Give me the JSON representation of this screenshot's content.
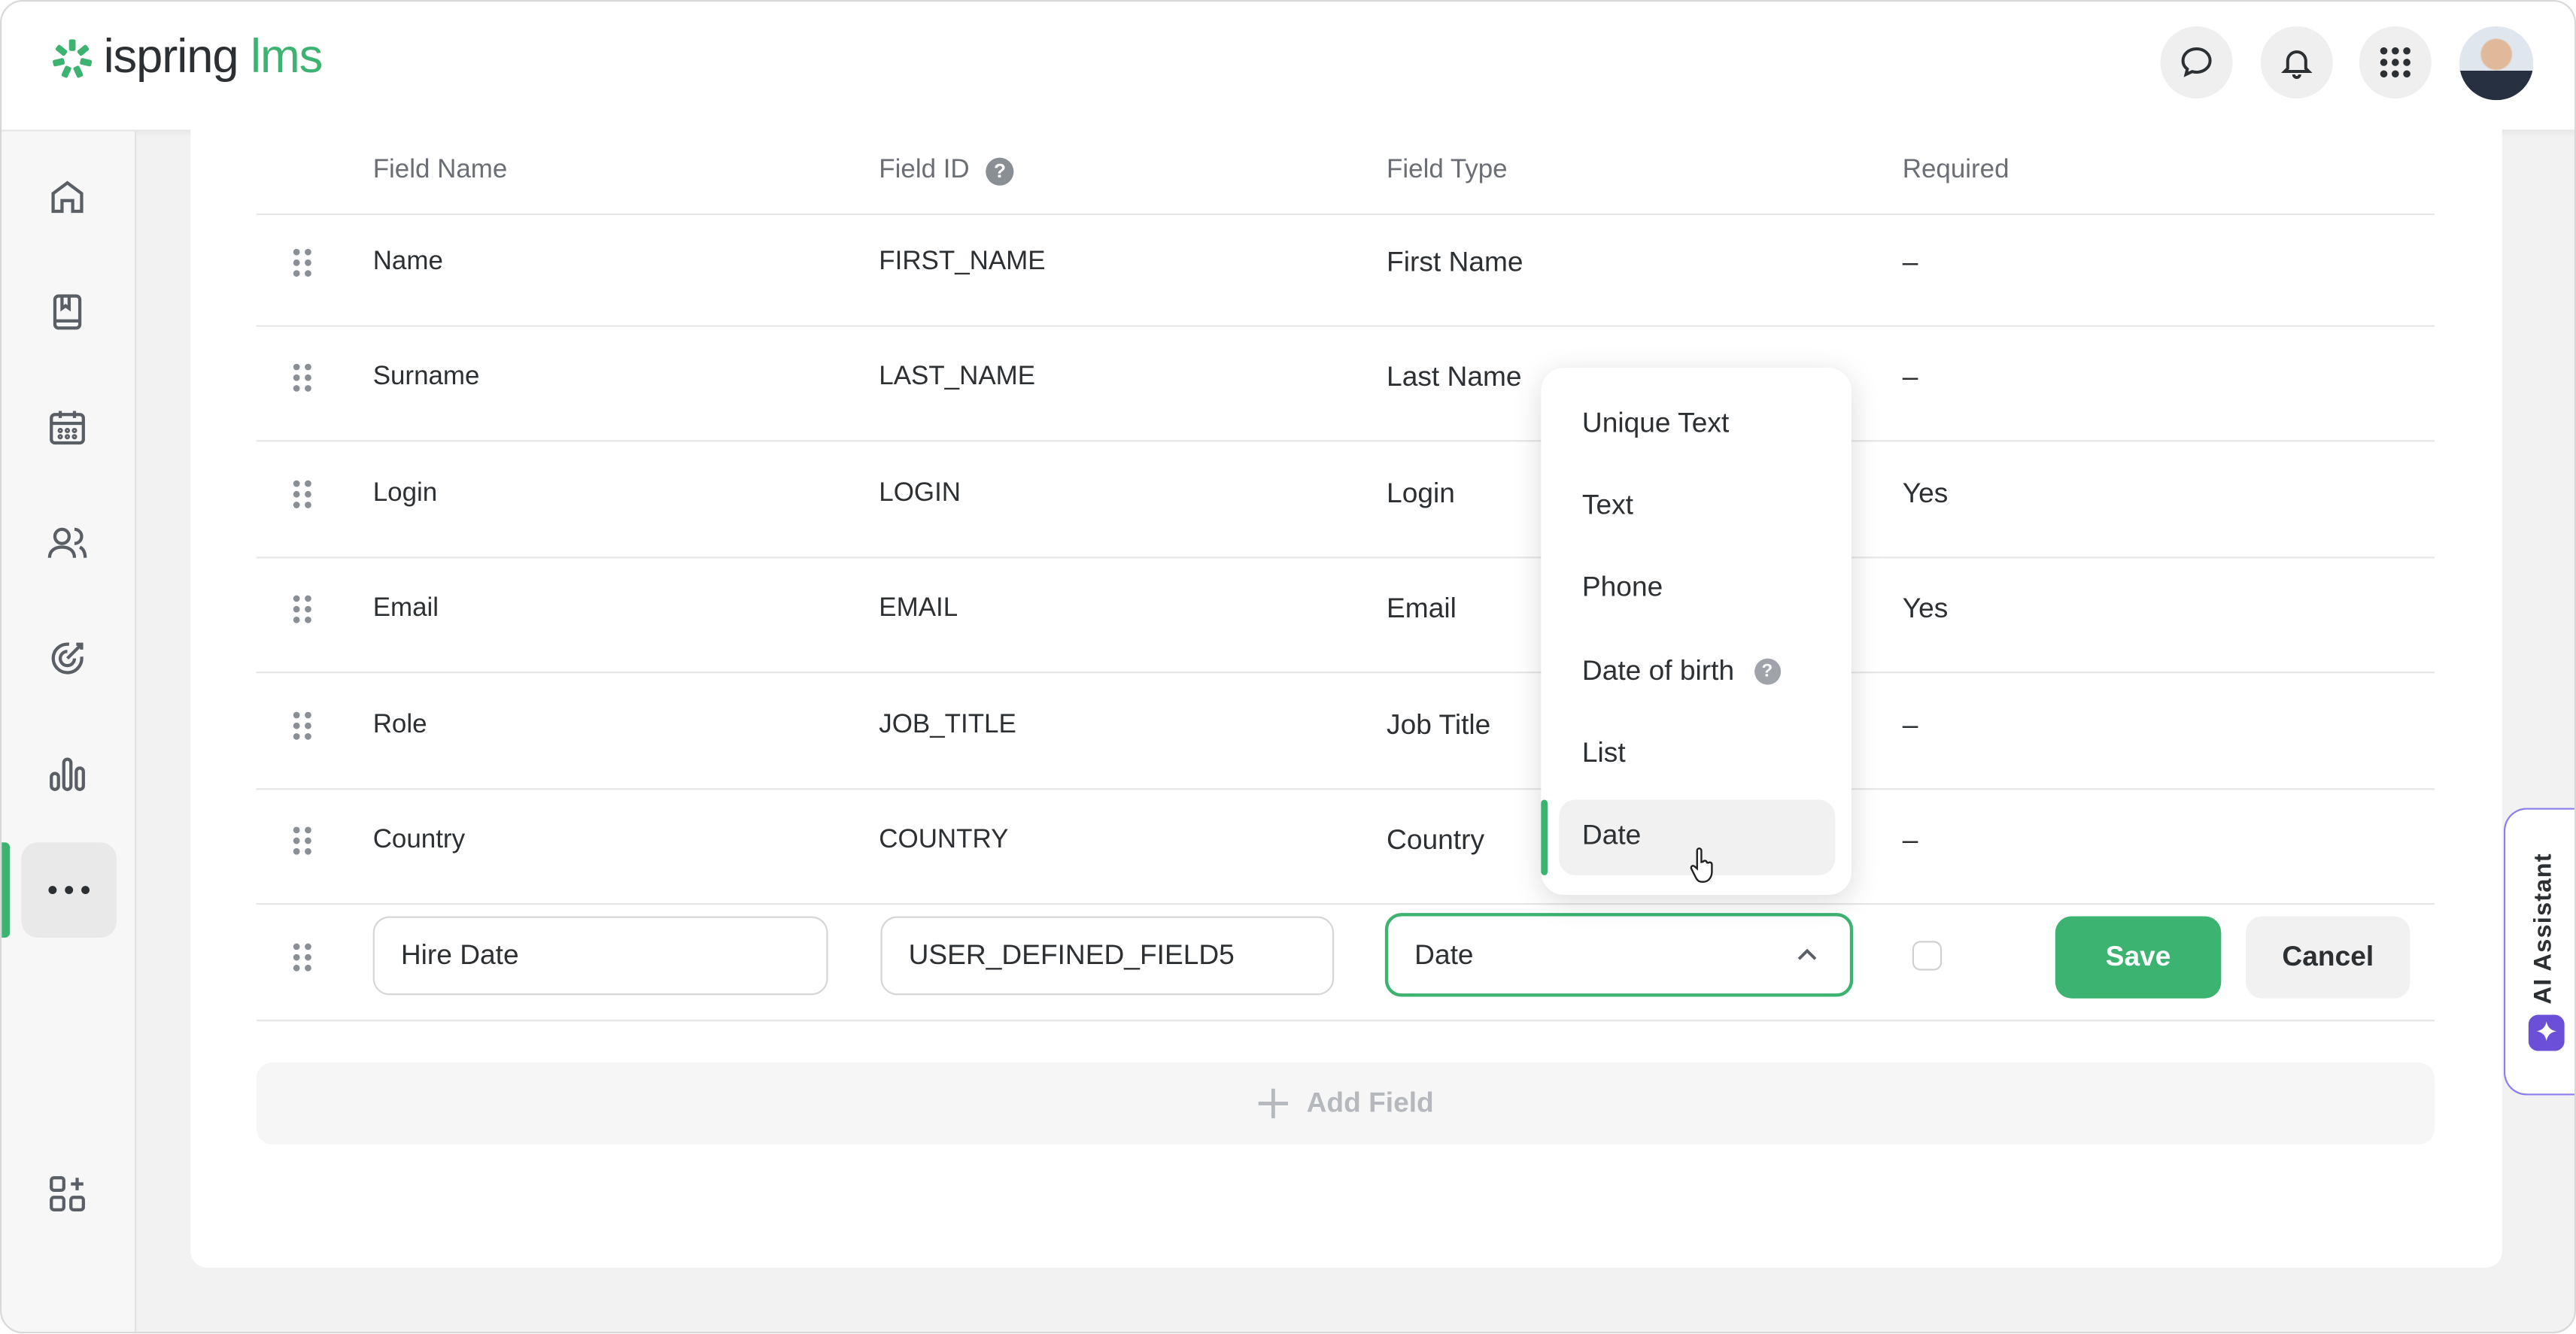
{
  "header": {
    "logo_main": "ispring",
    "logo_accent": "lms",
    "brand_color": "#3cb371"
  },
  "sidebar": {
    "items": [
      {
        "icon": "home-icon"
      },
      {
        "icon": "book-icon"
      },
      {
        "icon": "calendar-icon"
      },
      {
        "icon": "users-icon"
      },
      {
        "icon": "target-icon"
      },
      {
        "icon": "chart-icon"
      },
      {
        "icon": "more-icon",
        "active": true
      },
      {
        "icon": "add-widget-icon"
      }
    ]
  },
  "table": {
    "headers": {
      "name": "Field Name",
      "id": "Field ID",
      "type": "Field Type",
      "required": "Required"
    },
    "rows": [
      {
        "name": "Name",
        "id": "FIRST_NAME",
        "type": "First Name",
        "required": "–"
      },
      {
        "name": "Surname",
        "id": "LAST_NAME",
        "type": "Last Name",
        "required": "–"
      },
      {
        "name": "Login",
        "id": "LOGIN",
        "type": "Login",
        "required": "Yes"
      },
      {
        "name": "Email",
        "id": "EMAIL",
        "type": "Email",
        "required": "Yes"
      },
      {
        "name": "Role",
        "id": "JOB_TITLE",
        "type": "Job Title",
        "required": "–"
      },
      {
        "name": "Country",
        "id": "COUNTRY",
        "type": "Country",
        "required": "–"
      }
    ],
    "edit_row": {
      "name_value": "Hire Date",
      "id_value": "USER_DEFINED_FIELD5",
      "type_value": "Date",
      "required_checked": false,
      "save_label": "Save",
      "cancel_label": "Cancel"
    },
    "add_field_label": "Add Field"
  },
  "dropdown": {
    "options": [
      "Unique Text",
      "Text",
      "Phone",
      "Date of birth",
      "List",
      "Date"
    ],
    "selected": "Date"
  },
  "ai_assistant": {
    "label": "AI Assistant",
    "color": "#6b4fd8"
  }
}
